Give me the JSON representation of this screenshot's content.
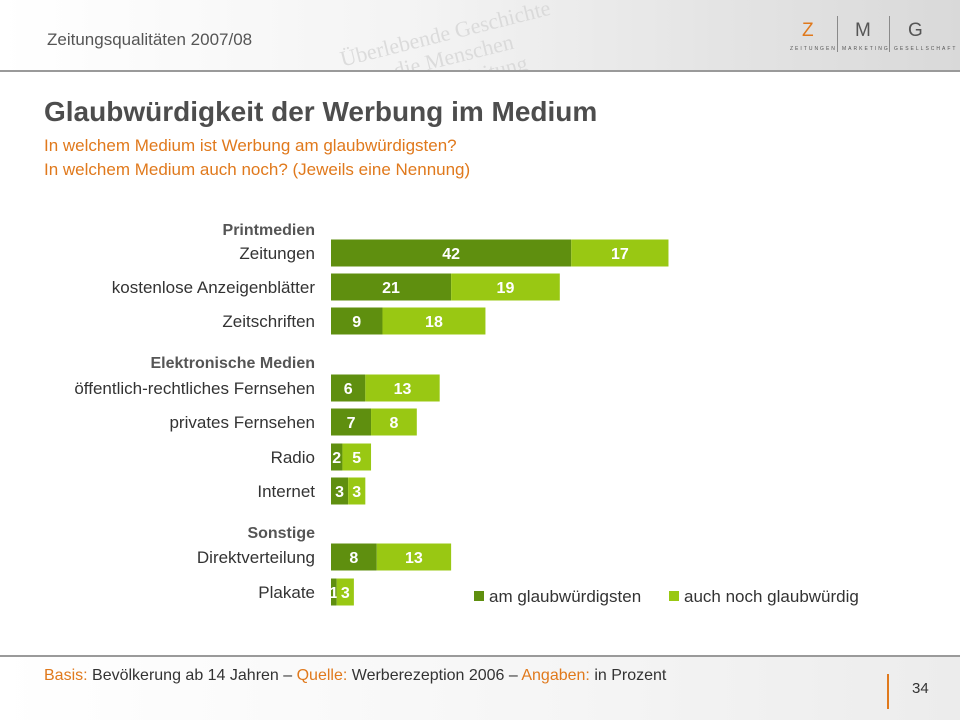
{
  "header": {
    "doc_title": "Zeitungsqualitäten 2007/08",
    "logo": {
      "letters": [
        "Z",
        "M",
        "G"
      ],
      "sublabels": [
        "ZEITUNGEN",
        "MARKETING",
        "GESELLSCHAFT"
      ],
      "accent_color": "#e0791c"
    }
  },
  "slide": {
    "title": "Glaubwürdigkeit der Werbung im Medium",
    "question_1": "In welchem Medium ist Werbung am glaubwürdigsten?",
    "question_2": "In welchem Medium auch noch? (Jeweils eine Nennung)"
  },
  "chart_data": {
    "type": "bar",
    "orientation": "horizontal",
    "stacked": true,
    "groups": [
      "Printmedien",
      "Elektronische Medien",
      "Sonstige"
    ],
    "categories": [
      "Zeitungen",
      "kostenlose Anzeigenblätter",
      "Zeitschriften",
      "öffentlich-rechtliches Fernsehen",
      "privates Fernsehen",
      "Radio",
      "Internet",
      "Direktverteilung",
      "Plakate"
    ],
    "category_groups": [
      0,
      0,
      0,
      1,
      1,
      1,
      1,
      2,
      2
    ],
    "series": [
      {
        "name": "am glaubwürdigsten",
        "color": "#5f8f0f",
        "values": [
          42,
          21,
          9,
          6,
          7,
          2,
          3,
          8,
          1
        ]
      },
      {
        "name": "auch noch glaubwürdig",
        "color": "#99c813",
        "values": [
          17,
          19,
          18,
          13,
          8,
          5,
          3,
          13,
          3
        ]
      }
    ],
    "legend_position": "bottom-right",
    "grid": false,
    "unit": "Prozent"
  },
  "footer": {
    "basis_key": "Basis:",
    "basis_value": " Bevölkerung ab 14 Jahren – ",
    "source_key": "Quelle:",
    "source_value": " Werberezeption 2006 – ",
    "data_key": "Angaben:",
    "data_value": " in Prozent",
    "page_number": "34"
  }
}
